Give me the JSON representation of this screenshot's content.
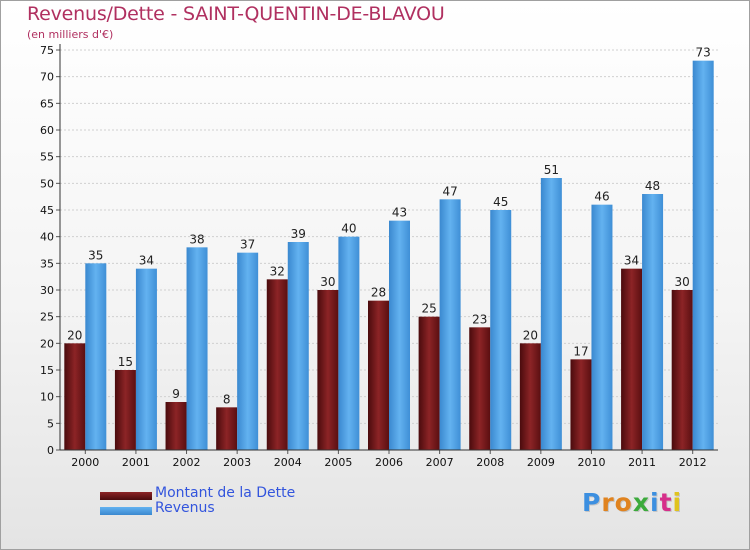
{
  "header": {
    "title": "Revenus/Dette - SAINT-QUENTIN-DE-BLAVOU",
    "subtitle": "(en milliers d'€)"
  },
  "chart_data": {
    "type": "bar",
    "title": "Revenus/Dette - SAINT-QUENTIN-DE-BLAVOU",
    "ylabel": "(en milliers d'€)",
    "xlabel": "",
    "ylim": [
      0,
      75
    ],
    "yticks": [
      0,
      5,
      10,
      15,
      20,
      25,
      30,
      35,
      40,
      45,
      50,
      55,
      60,
      65,
      70,
      75
    ],
    "grid": true,
    "categories": [
      "2000",
      "2001",
      "2002",
      "2003",
      "2004",
      "2005",
      "2006",
      "2007",
      "2008",
      "2009",
      "2010",
      "2011",
      "2012"
    ],
    "series": [
      {
        "name": "Montant de la Dette",
        "color": "#7a1a1c",
        "values": [
          20,
          15,
          9,
          8,
          32,
          30,
          28,
          25,
          23,
          20,
          17,
          34,
          30
        ]
      },
      {
        "name": "Revenus",
        "color": "#4f9fe3",
        "values": [
          35,
          34,
          38,
          37,
          39,
          40,
          43,
          47,
          45,
          51,
          46,
          48,
          73
        ]
      }
    ],
    "legend_position": "bottom-left"
  },
  "logo": {
    "text": "Proxiti"
  }
}
